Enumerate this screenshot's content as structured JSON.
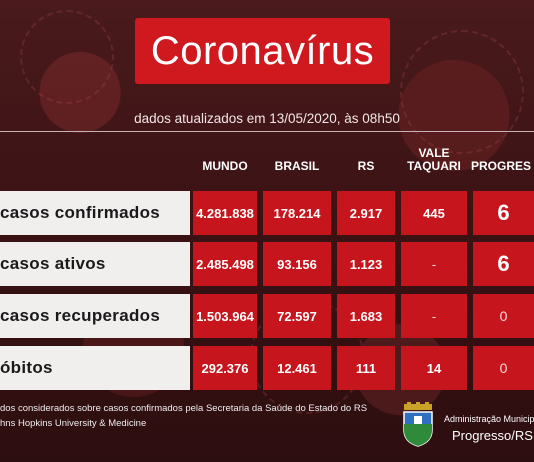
{
  "title": "Coronavírus",
  "updated": "dados atualizados em 13/05/2020, às 08h50",
  "columns": [
    "MUNDO",
    "BRASIL",
    "RS",
    "VALE TAQUARI",
    "PROGRES"
  ],
  "rows": [
    {
      "label": "casos confirmados",
      "values": [
        "4.281.838",
        "178.214",
        "2.917",
        "445",
        "6"
      ]
    },
    {
      "label": "casos ativos",
      "values": [
        "2.485.498",
        "93.156",
        "1.123",
        "-",
        "6"
      ]
    },
    {
      "label": "casos recuperados",
      "values": [
        "1.503.964",
        "72.597",
        "1.683",
        "-",
        "0"
      ]
    },
    {
      "label": "óbitos",
      "values": [
        "292.376",
        "12.461",
        "111",
        "14",
        "0"
      ]
    }
  ],
  "footnote1": "dos considerados sobre casos confirmados pela Secretaria da Saúde do Estado do RS",
  "footnote2": "hns Hopkins University & Medicine",
  "admin_line1": "Administração Municip",
  "admin_line2": "Progresso/RS",
  "colors": {
    "red": "#c6151c",
    "title_red": "#d0181f",
    "label_bg": "#f1eeee"
  }
}
